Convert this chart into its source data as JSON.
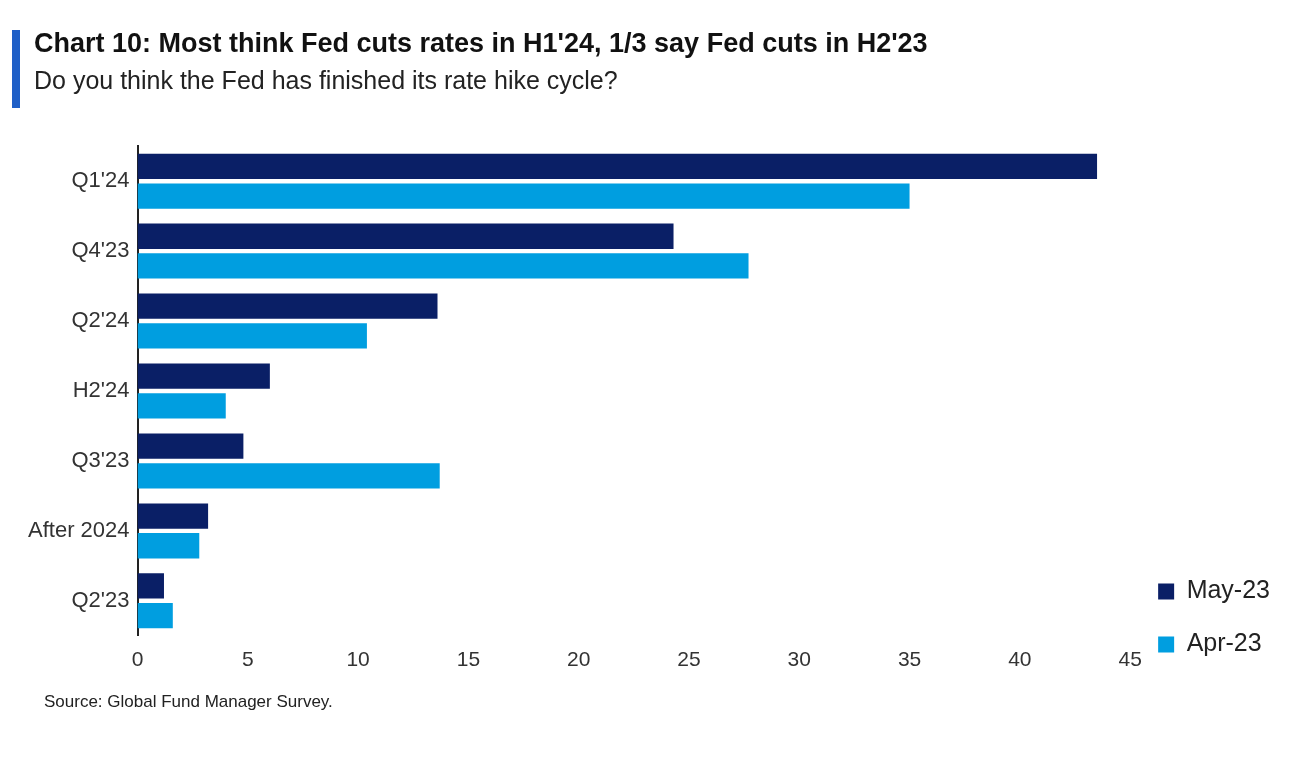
{
  "chart_data": {
    "type": "bar",
    "orientation": "horizontal",
    "title": "Chart 10: Most think Fed cuts rates in H1'24, 1/3 say Fed cuts in H2'23",
    "subtitle": "Do you think the Fed has finished its rate hike cycle?",
    "categories": [
      "Q1'24",
      "Q4'23",
      "Q2'24",
      "H2'24",
      "Q3'23",
      "After 2024",
      "Q2'23"
    ],
    "series": [
      {
        "name": "May-23",
        "color": "#0a1f66",
        "values": [
          43.5,
          24.3,
          13.6,
          6.0,
          4.8,
          3.2,
          1.2
        ]
      },
      {
        "name": "Apr-23",
        "color": "#009ee0",
        "values": [
          35.0,
          27.7,
          10.4,
          4.0,
          13.7,
          2.8,
          1.6
        ]
      }
    ],
    "xlim": [
      0,
      45
    ],
    "xticks": [
      0,
      5,
      10,
      15,
      20,
      25,
      30,
      35,
      40,
      45
    ],
    "grid": false,
    "legend": "right",
    "annotations": [
      "Source: Global Fund Manager Survey."
    ]
  }
}
